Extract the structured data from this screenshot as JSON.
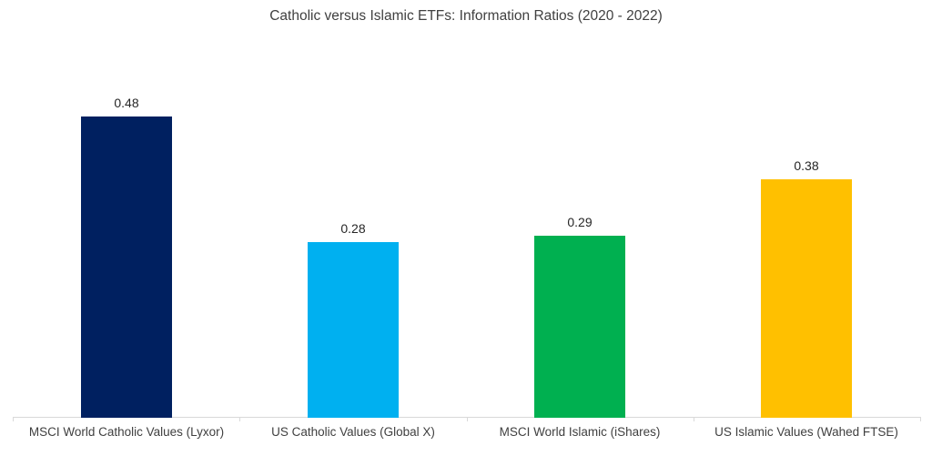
{
  "chart_data": {
    "type": "bar",
    "title": "Catholic versus Islamic ETFs: Information Ratios (2020 - 2022)",
    "categories": [
      "MSCI World Catholic Values (Lyxor)",
      "US Catholic Values (Global X)",
      "MSCI World Islamic (iShares)",
      "US Islamic Values (Wahed FTSE)"
    ],
    "values": [
      0.48,
      0.28,
      0.29,
      0.38
    ],
    "value_labels": [
      "0.48",
      "0.28",
      "0.29",
      "0.38"
    ],
    "bar_colors": [
      "#002060",
      "#00B0F0",
      "#00B050",
      "#FFC000"
    ],
    "xlabel": "",
    "ylabel": "",
    "ylim": [
      0,
      0.5
    ],
    "grid": false,
    "legend": false,
    "data_labels": true,
    "axis_color": "#D9D9D9",
    "text_color": "#404040"
  }
}
